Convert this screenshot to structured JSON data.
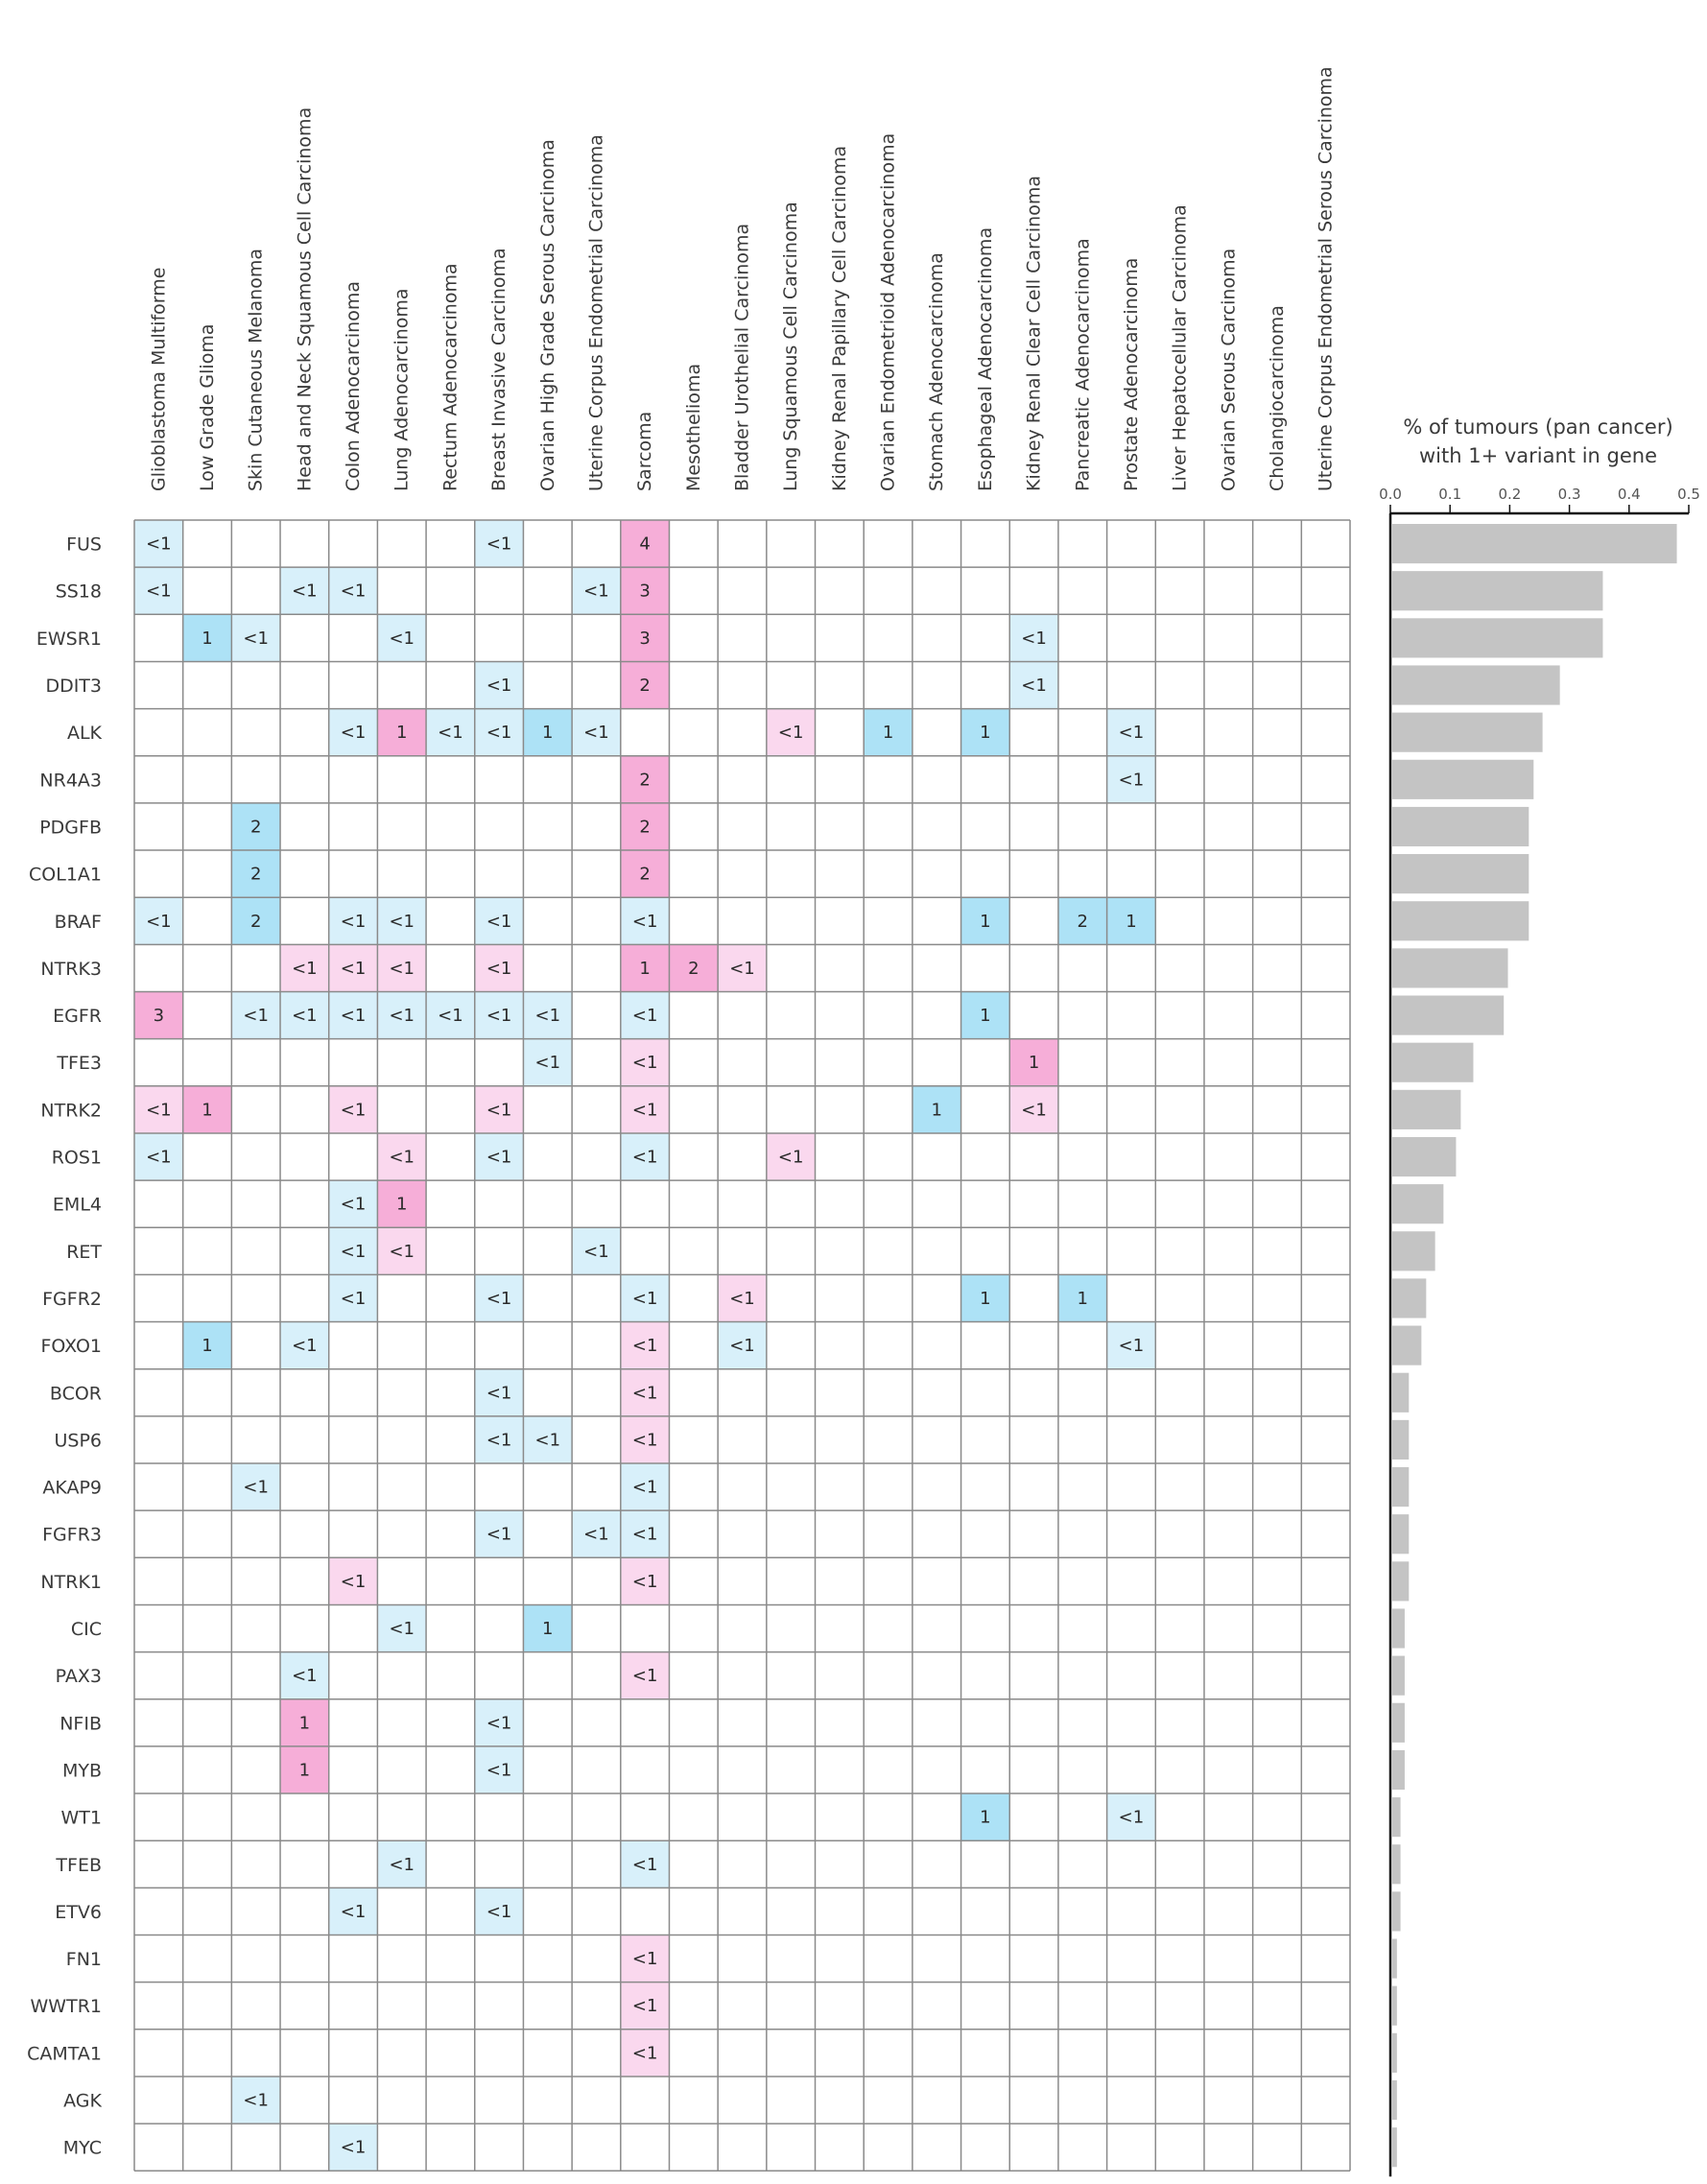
{
  "chart_data": {
    "type": "heatmap",
    "title": "",
    "legend": {
      "light_blue": "#d8f0fa",
      "blue": "#ade2f6",
      "light_pink": "#fad8ee",
      "pink": "#f6aed8",
      "empty": "#ffffff",
      "grid": "#8a8a8a",
      "bar": "#c4c4c4"
    },
    "columns": [
      "Glioblastoma Multiforme",
      "Low Grade Glioma",
      "Skin Cutaneous Melanoma",
      "Head and Neck Squamous Cell Carcinoma",
      "Colon Adenocarcinoma",
      "Lung Adenocarcinoma",
      "Rectum Adenocarcinoma",
      "Breast Invasive Carcinoma",
      "Ovarian High Grade Serous Carcinoma",
      "Uterine Corpus Endometrial Carcinoma",
      "Sarcoma",
      "Mesothelioma",
      "Bladder Urothelial Carcinoma",
      "Lung Squamous Cell Carcinoma",
      "Kidney Renal Papillary Cell Carcinoma",
      "Ovarian Endometrioid Adenocarcinoma",
      "Stomach Adenocarcinoma",
      "Esophageal Adenocarcinoma",
      "Kidney Renal Clear Cell Carcinoma",
      "Pancreatic Adenocarcinoma",
      "Prostate Adenocarcinoma",
      "Liver Hepatocellular Carcinoma",
      "Ovarian Serous Carcinoma",
      "Cholangiocarcinoma",
      "Uterine Corpus Endometrial Serous Carcinoma"
    ],
    "rows": [
      {
        "gene": "FUS",
        "pan_cancer_pct": 0.48,
        "cells": [
          [
            0,
            "<1",
            "b"
          ],
          [
            7,
            "<1",
            "b"
          ],
          [
            10,
            "4",
            "P"
          ]
        ]
      },
      {
        "gene": "SS18",
        "pan_cancer_pct": 0.356,
        "cells": [
          [
            0,
            "<1",
            "b"
          ],
          [
            3,
            "<1",
            "b"
          ],
          [
            4,
            "<1",
            "b"
          ],
          [
            9,
            "<1",
            "b"
          ],
          [
            10,
            "3",
            "P"
          ]
        ]
      },
      {
        "gene": "EWSR1",
        "pan_cancer_pct": 0.356,
        "cells": [
          [
            1,
            "1",
            "B"
          ],
          [
            2,
            "<1",
            "b"
          ],
          [
            5,
            "<1",
            "b"
          ],
          [
            10,
            "3",
            "P"
          ],
          [
            18,
            "<1",
            "b"
          ]
        ]
      },
      {
        "gene": "DDIT3",
        "pan_cancer_pct": 0.284,
        "cells": [
          [
            7,
            "<1",
            "b"
          ],
          [
            10,
            "2",
            "P"
          ],
          [
            18,
            "<1",
            "b"
          ]
        ]
      },
      {
        "gene": "ALK",
        "pan_cancer_pct": 0.255,
        "cells": [
          [
            4,
            "<1",
            "b"
          ],
          [
            5,
            "1",
            "P"
          ],
          [
            6,
            "<1",
            "b"
          ],
          [
            7,
            "<1",
            "b"
          ],
          [
            8,
            "1",
            "B"
          ],
          [
            9,
            "<1",
            "b"
          ],
          [
            13,
            "<1",
            "p"
          ],
          [
            15,
            "1",
            "B"
          ],
          [
            17,
            "1",
            "B"
          ],
          [
            20,
            "<1",
            "b"
          ]
        ]
      },
      {
        "gene": "NR4A3",
        "pan_cancer_pct": 0.24,
        "cells": [
          [
            10,
            "2",
            "P"
          ],
          [
            20,
            "<1",
            "b"
          ]
        ]
      },
      {
        "gene": "PDGFB",
        "pan_cancer_pct": 0.232,
        "cells": [
          [
            2,
            "2",
            "B"
          ],
          [
            10,
            "2",
            "P"
          ]
        ]
      },
      {
        "gene": "COL1A1",
        "pan_cancer_pct": 0.232,
        "cells": [
          [
            2,
            "2",
            "B"
          ],
          [
            10,
            "2",
            "P"
          ]
        ]
      },
      {
        "gene": "BRAF",
        "pan_cancer_pct": 0.232,
        "cells": [
          [
            0,
            "<1",
            "b"
          ],
          [
            2,
            "2",
            "B"
          ],
          [
            4,
            "<1",
            "b"
          ],
          [
            5,
            "<1",
            "b"
          ],
          [
            7,
            "<1",
            "b"
          ],
          [
            10,
            "<1",
            "b"
          ],
          [
            17,
            "1",
            "B"
          ],
          [
            19,
            "2",
            "B"
          ],
          [
            20,
            "1",
            "B"
          ]
        ]
      },
      {
        "gene": "NTRK3",
        "pan_cancer_pct": 0.197,
        "cells": [
          [
            3,
            "<1",
            "p"
          ],
          [
            4,
            "<1",
            "p"
          ],
          [
            5,
            "<1",
            "p"
          ],
          [
            7,
            "<1",
            "p"
          ],
          [
            10,
            "1",
            "P"
          ],
          [
            11,
            "2",
            "P"
          ],
          [
            12,
            "<1",
            "p"
          ]
        ]
      },
      {
        "gene": "EGFR",
        "pan_cancer_pct": 0.19,
        "cells": [
          [
            0,
            "3",
            "P"
          ],
          [
            2,
            "<1",
            "b"
          ],
          [
            3,
            "<1",
            "b"
          ],
          [
            4,
            "<1",
            "b"
          ],
          [
            5,
            "<1",
            "b"
          ],
          [
            6,
            "<1",
            "b"
          ],
          [
            7,
            "<1",
            "b"
          ],
          [
            8,
            "<1",
            "b"
          ],
          [
            10,
            "<1",
            "b"
          ],
          [
            17,
            "1",
            "B"
          ]
        ]
      },
      {
        "gene": "TFE3",
        "pan_cancer_pct": 0.139,
        "cells": [
          [
            8,
            "<1",
            "b"
          ],
          [
            10,
            "<1",
            "p"
          ],
          [
            18,
            "1",
            "P"
          ]
        ]
      },
      {
        "gene": "NTRK2",
        "pan_cancer_pct": 0.118,
        "cells": [
          [
            0,
            "<1",
            "p"
          ],
          [
            1,
            "1",
            "P"
          ],
          [
            4,
            "<1",
            "p"
          ],
          [
            7,
            "<1",
            "p"
          ],
          [
            10,
            "<1",
            "p"
          ],
          [
            16,
            "1",
            "B"
          ],
          [
            18,
            "<1",
            "p"
          ]
        ]
      },
      {
        "gene": "ROS1",
        "pan_cancer_pct": 0.11,
        "cells": [
          [
            0,
            "<1",
            "b"
          ],
          [
            5,
            "<1",
            "p"
          ],
          [
            7,
            "<1",
            "b"
          ],
          [
            10,
            "<1",
            "b"
          ],
          [
            13,
            "<1",
            "p"
          ]
        ]
      },
      {
        "gene": "EML4",
        "pan_cancer_pct": 0.089,
        "cells": [
          [
            4,
            "<1",
            "b"
          ],
          [
            5,
            "1",
            "P"
          ]
        ]
      },
      {
        "gene": "RET",
        "pan_cancer_pct": 0.075,
        "cells": [
          [
            4,
            "<1",
            "b"
          ],
          [
            5,
            "<1",
            "p"
          ],
          [
            9,
            "<1",
            "b"
          ]
        ]
      },
      {
        "gene": "FGFR2",
        "pan_cancer_pct": 0.06,
        "cells": [
          [
            4,
            "<1",
            "b"
          ],
          [
            7,
            "<1",
            "b"
          ],
          [
            10,
            "<1",
            "b"
          ],
          [
            12,
            "<1",
            "p"
          ],
          [
            17,
            "1",
            "B"
          ],
          [
            19,
            "1",
            "B"
          ]
        ]
      },
      {
        "gene": "FOXO1",
        "pan_cancer_pct": 0.052,
        "cells": [
          [
            1,
            "1",
            "B"
          ],
          [
            3,
            "<1",
            "b"
          ],
          [
            10,
            "<1",
            "p"
          ],
          [
            12,
            "<1",
            "b"
          ],
          [
            20,
            "<1",
            "b"
          ]
        ]
      },
      {
        "gene": "BCOR",
        "pan_cancer_pct": 0.031,
        "cells": [
          [
            7,
            "<1",
            "b"
          ],
          [
            10,
            "<1",
            "p"
          ]
        ]
      },
      {
        "gene": "USP6",
        "pan_cancer_pct": 0.031,
        "cells": [
          [
            7,
            "<1",
            "b"
          ],
          [
            8,
            "<1",
            "b"
          ],
          [
            10,
            "<1",
            "p"
          ]
        ]
      },
      {
        "gene": "AKAP9",
        "pan_cancer_pct": 0.031,
        "cells": [
          [
            2,
            "<1",
            "b"
          ],
          [
            10,
            "<1",
            "b"
          ]
        ]
      },
      {
        "gene": "FGFR3",
        "pan_cancer_pct": 0.031,
        "cells": [
          [
            7,
            "<1",
            "b"
          ],
          [
            9,
            "<1",
            "b"
          ],
          [
            10,
            "<1",
            "b"
          ]
        ]
      },
      {
        "gene": "NTRK1",
        "pan_cancer_pct": 0.031,
        "cells": [
          [
            4,
            "<1",
            "p"
          ],
          [
            10,
            "<1",
            "p"
          ]
        ]
      },
      {
        "gene": "CIC",
        "pan_cancer_pct": 0.024,
        "cells": [
          [
            5,
            "<1",
            "b"
          ],
          [
            8,
            "1",
            "B"
          ]
        ]
      },
      {
        "gene": "PAX3",
        "pan_cancer_pct": 0.024,
        "cells": [
          [
            3,
            "<1",
            "b"
          ],
          [
            10,
            "<1",
            "p"
          ]
        ]
      },
      {
        "gene": "NFIB",
        "pan_cancer_pct": 0.024,
        "cells": [
          [
            3,
            "1",
            "P"
          ],
          [
            7,
            "<1",
            "b"
          ]
        ]
      },
      {
        "gene": "MYB",
        "pan_cancer_pct": 0.024,
        "cells": [
          [
            3,
            "1",
            "P"
          ],
          [
            7,
            "<1",
            "b"
          ]
        ]
      },
      {
        "gene": "WT1",
        "pan_cancer_pct": 0.017,
        "cells": [
          [
            17,
            "1",
            "B"
          ],
          [
            20,
            "<1",
            "b"
          ]
        ]
      },
      {
        "gene": "TFEB",
        "pan_cancer_pct": 0.017,
        "cells": [
          [
            5,
            "<1",
            "b"
          ],
          [
            10,
            "<1",
            "b"
          ]
        ]
      },
      {
        "gene": "ETV6",
        "pan_cancer_pct": 0.017,
        "cells": [
          [
            4,
            "<1",
            "b"
          ],
          [
            7,
            "<1",
            "b"
          ]
        ]
      },
      {
        "gene": "FN1",
        "pan_cancer_pct": 0.011,
        "cells": [
          [
            10,
            "<1",
            "p"
          ]
        ]
      },
      {
        "gene": "WWTR1",
        "pan_cancer_pct": 0.011,
        "cells": [
          [
            10,
            "<1",
            "p"
          ]
        ]
      },
      {
        "gene": "CAMTA1",
        "pan_cancer_pct": 0.011,
        "cells": [
          [
            10,
            "<1",
            "p"
          ]
        ]
      },
      {
        "gene": "AGK",
        "pan_cancer_pct": 0.011,
        "cells": [
          [
            2,
            "<1",
            "b"
          ]
        ]
      },
      {
        "gene": "MYC",
        "pan_cancer_pct": 0.011,
        "cells": [
          [
            4,
            "<1",
            "b"
          ]
        ]
      }
    ],
    "bar_axis": {
      "title_line1": "% of tumours (pan cancer)",
      "title_line2": "with 1+ variant in gene",
      "xlim": [
        0,
        0.5
      ],
      "ticks": [
        "0.0",
        "0.1",
        "0.2",
        "0.3",
        "0.4",
        "0.5"
      ],
      "tick_values": [
        0,
        0.1,
        0.2,
        0.3,
        0.4,
        0.5
      ],
      "type": "bar"
    }
  }
}
